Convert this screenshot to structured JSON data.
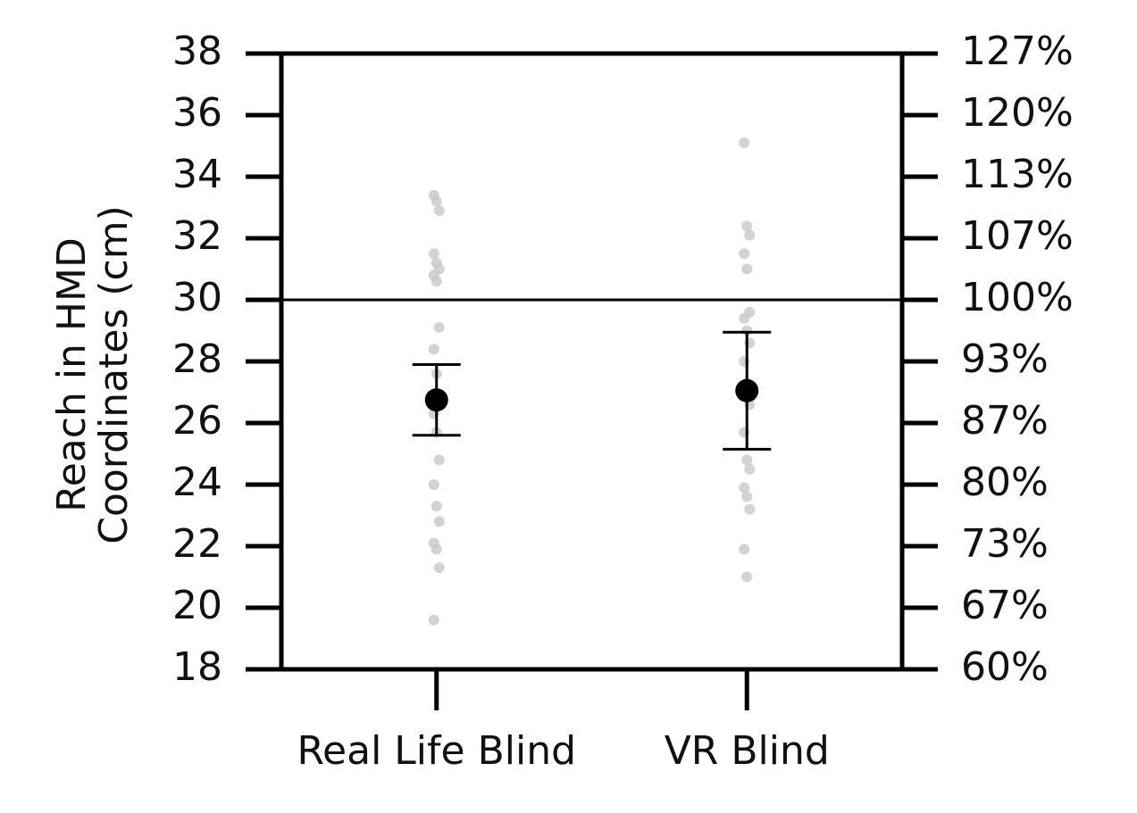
{
  "chart_data": {
    "type": "strip",
    "ylabel": [
      "Reach in HMD",
      "Coordinates (cm)"
    ],
    "categories": [
      "Real Life Blind",
      "VR Blind"
    ],
    "points": [
      {
        "values": [
          33.4,
          33.2,
          32.9,
          31.5,
          31.2,
          31.0,
          30.8,
          30.6,
          29.1,
          28.4,
          27.6,
          26.9,
          26.3,
          25.7,
          24.8,
          24.0,
          23.3,
          22.8,
          22.1,
          21.9,
          21.3,
          19.6
        ]
      },
      {
        "values": [
          35.1,
          32.4,
          32.1,
          31.5,
          31.0,
          29.6,
          29.4,
          29.0,
          28.6,
          28.0,
          27.3,
          26.6,
          25.7,
          24.8,
          24.5,
          23.9,
          23.6,
          23.2,
          21.9,
          21.0
        ]
      }
    ],
    "point_color": "#c8c8c8",
    "means": [
      26.75,
      27.05
    ],
    "errors": [
      1.15,
      1.9
    ],
    "mean_color": "#000000",
    "hline": 30,
    "ylim": [
      18,
      38
    ],
    "yticks": [
      18,
      20,
      22,
      24,
      26,
      28,
      30,
      32,
      34,
      36,
      38
    ],
    "y2lim": [
      60,
      126.667
    ],
    "y2ticks": [
      {
        "value": 60,
        "label": "60%"
      },
      {
        "value": 66.667,
        "label": "67%"
      },
      {
        "value": 73.333,
        "label": "73%"
      },
      {
        "value": 80,
        "label": "80%"
      },
      {
        "value": 86.667,
        "label": "87%"
      },
      {
        "value": 93.333,
        "label": "93%"
      },
      {
        "value": 100,
        "label": "100%"
      },
      {
        "value": 106.667,
        "label": "107%"
      },
      {
        "value": 113.333,
        "label": "113%"
      },
      {
        "value": 120,
        "label": "120%"
      },
      {
        "value": 126.667,
        "label": "127%"
      }
    ]
  }
}
